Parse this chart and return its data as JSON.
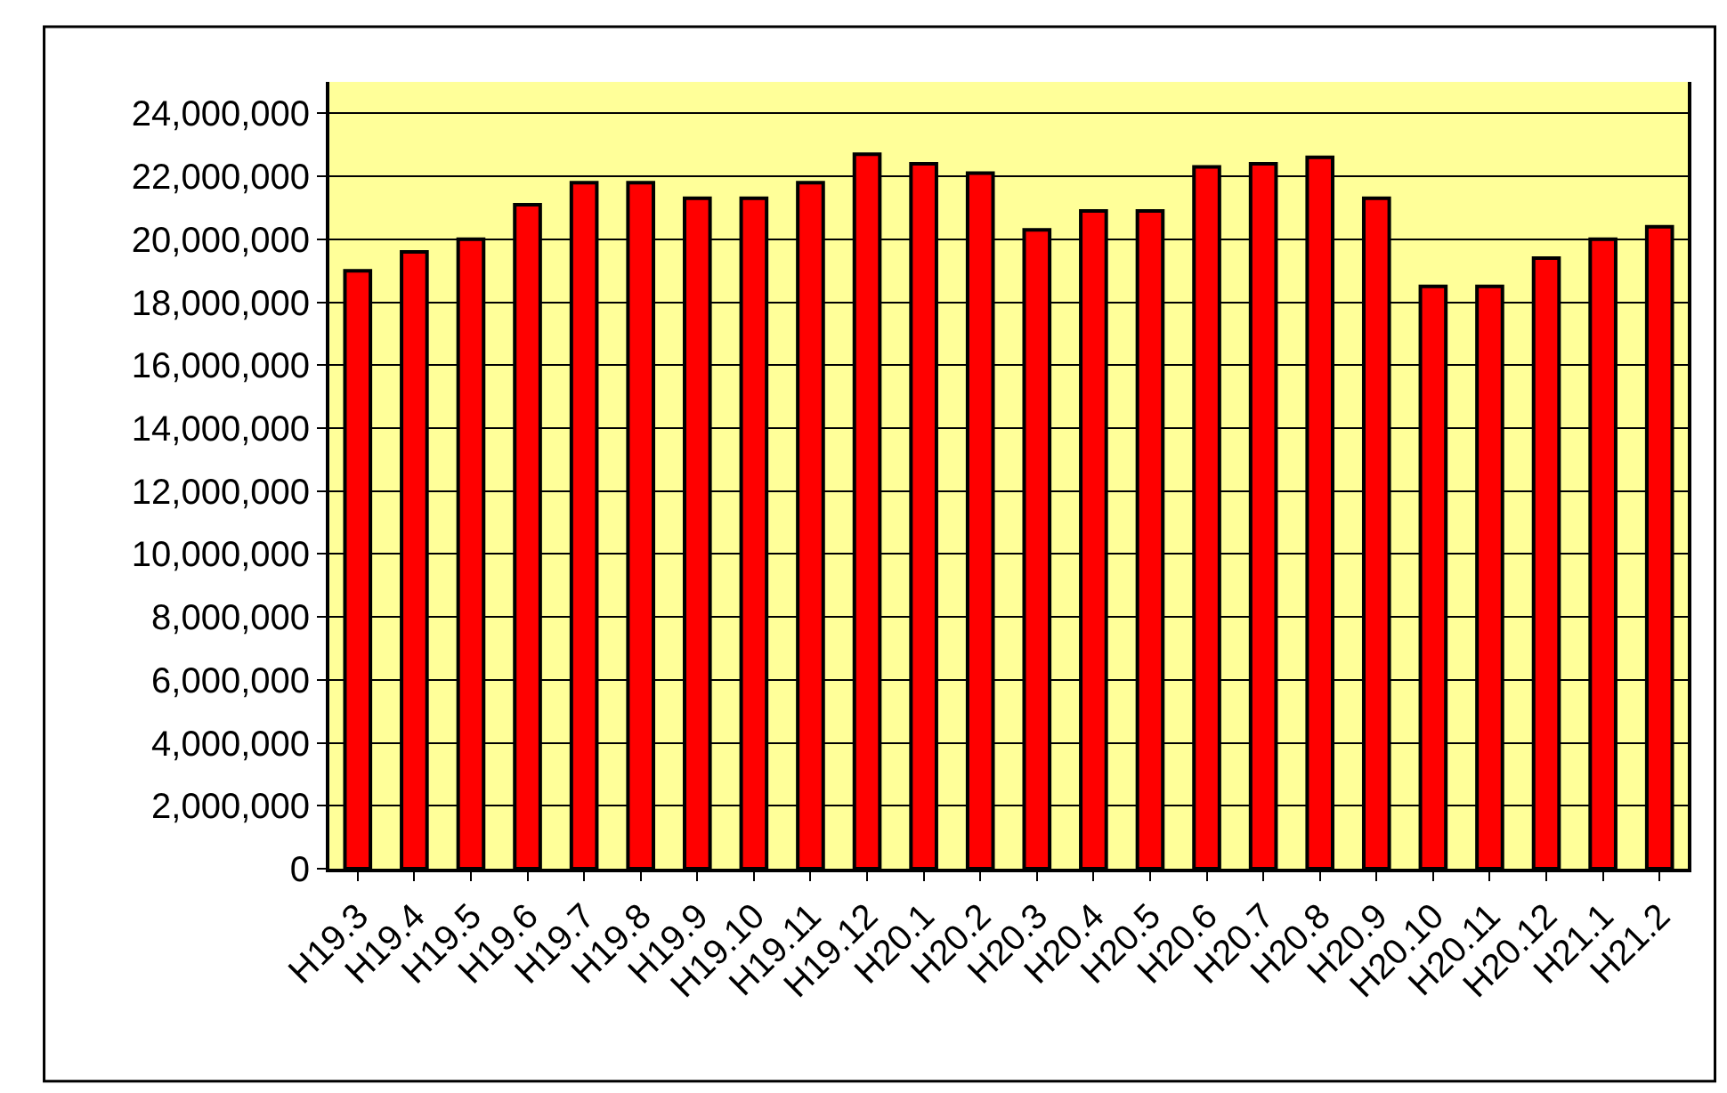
{
  "chart_data": {
    "type": "bar",
    "categories": [
      "H19.3",
      "H19.4",
      "H19.5",
      "H19.6",
      "H19.7",
      "H19.8",
      "H19.9",
      "H19.10",
      "H19.11",
      "H19.12",
      "H20.1",
      "H20.2",
      "H20.3",
      "H20.4",
      "H20.5",
      "H20.6",
      "H20.7",
      "H20.8",
      "H20.9",
      "H20.10",
      "H20.11",
      "H20.12",
      "H21.1",
      "H21.2"
    ],
    "values": [
      19000000,
      19600000,
      20000000,
      21100000,
      21800000,
      21800000,
      21300000,
      21300000,
      21800000,
      22700000,
      22400000,
      22100000,
      20300000,
      20900000,
      20900000,
      22300000,
      22400000,
      22600000,
      21300000,
      18500000,
      18500000,
      19400000,
      20000000,
      20400000
    ],
    "color": "#ff0000",
    "ylim": [
      0,
      25000000
    ],
    "yticks": [
      0,
      {
        "value": 2000000,
        "label": "2,000,000"
      },
      {
        "value": 4000000,
        "label": "4,000,000"
      },
      {
        "value": 6000000,
        "label": "6,000,000"
      },
      {
        "value": 8000000,
        "label": "8,000,000"
      },
      {
        "value": 10000000,
        "label": "10,000,000"
      },
      {
        "value": 12000000,
        "label": "12,000,000"
      },
      {
        "value": 14000000,
        "label": "14,000,000"
      },
      {
        "value": 16000000,
        "label": "16,000,000"
      },
      {
        "value": 18000000,
        "label": "18,000,000"
      },
      {
        "value": 20000000,
        "label": "20,000,000"
      },
      {
        "value": 22000000,
        "label": "22,000,000"
      },
      {
        "value": 24000000,
        "label": "24,000,000"
      }
    ],
    "grid": "y"
  }
}
